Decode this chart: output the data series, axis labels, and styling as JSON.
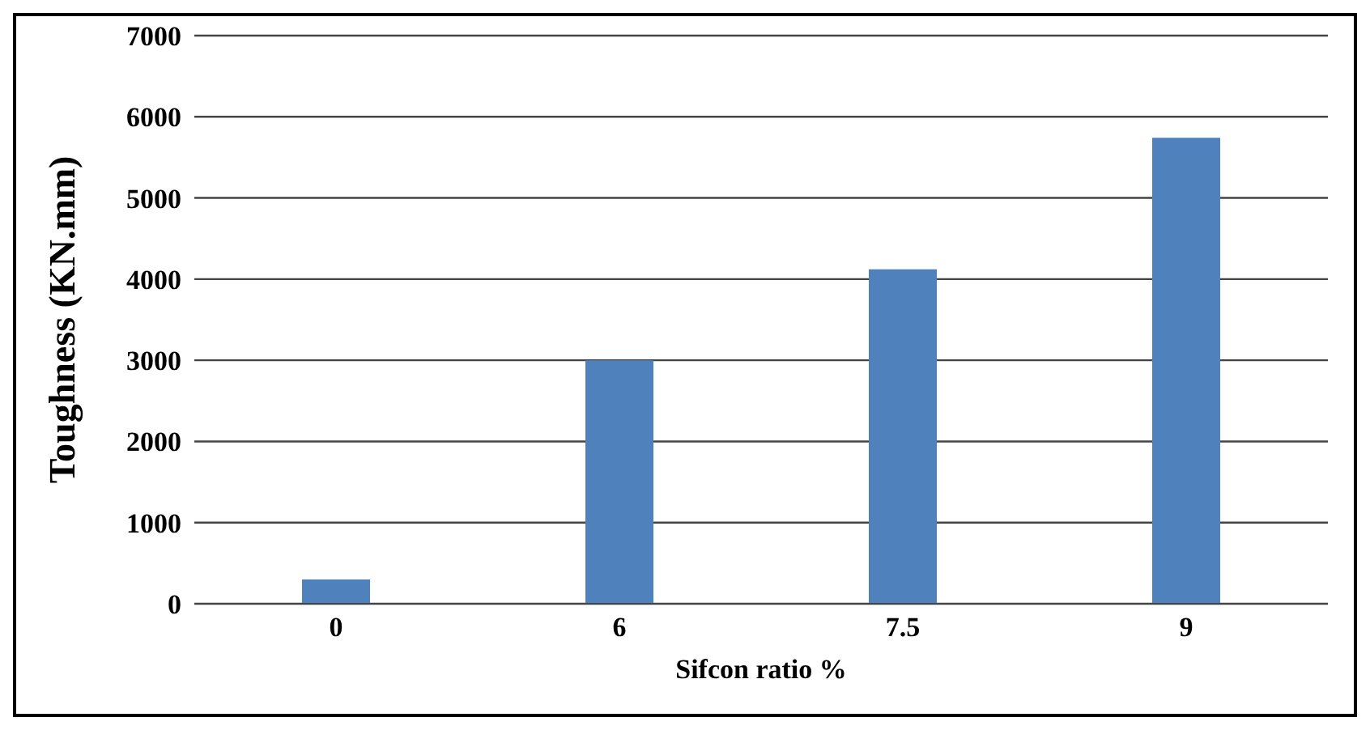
{
  "chart_data": {
    "type": "bar",
    "xlabel": "Sifcon ratio %",
    "ylabel": "Toughness (KN.mm)",
    "categories": [
      "0",
      "6",
      "7.5",
      "9"
    ],
    "values": [
      300,
      3000,
      4120,
      5740
    ],
    "color": "#4f81bd",
    "ylim": [
      0,
      7000
    ],
    "yticks": [
      0,
      1000,
      2000,
      3000,
      4000,
      5000,
      6000,
      7000
    ],
    "grid": "y"
  }
}
